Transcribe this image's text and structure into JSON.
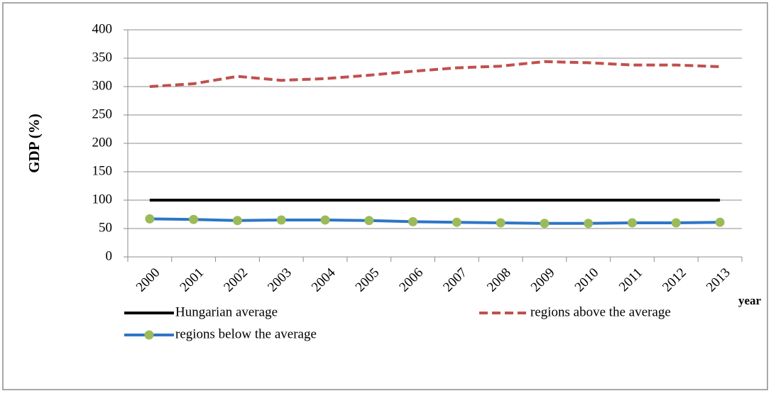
{
  "chart_data": {
    "type": "line",
    "y_label": "GDP (%)",
    "x_label": "year",
    "categories": [
      "2000",
      "2001",
      "2002",
      "2003",
      "2004",
      "2005",
      "2006",
      "2007",
      "2008",
      "2009",
      "2010",
      "2011",
      "2012",
      "2013"
    ],
    "series": [
      {
        "name": "Hungarian average",
        "color": "#000000",
        "line_style": "solid",
        "values": [
          100,
          100,
          100,
          100,
          100,
          100,
          100,
          100,
          100,
          100,
          100,
          100,
          100,
          100
        ]
      },
      {
        "name": "regions above the average",
        "color": "#c0504d",
        "line_style": "dashed",
        "values": [
          300,
          305,
          318,
          311,
          314,
          320,
          327,
          333,
          336,
          344,
          342,
          338,
          338,
          335
        ]
      },
      {
        "name": "regions below the average",
        "color": "#2e75c6",
        "line_style": "solid",
        "marker": "circle",
        "marker_color": "#9bbb59",
        "values": [
          67,
          66,
          64,
          65,
          65,
          64,
          62,
          61,
          60,
          59,
          59,
          60,
          60,
          61
        ]
      }
    ],
    "ylim": [
      0,
      400
    ],
    "yticks": [
      0,
      50,
      100,
      150,
      200,
      250,
      300,
      350,
      400
    ],
    "grid": true
  }
}
